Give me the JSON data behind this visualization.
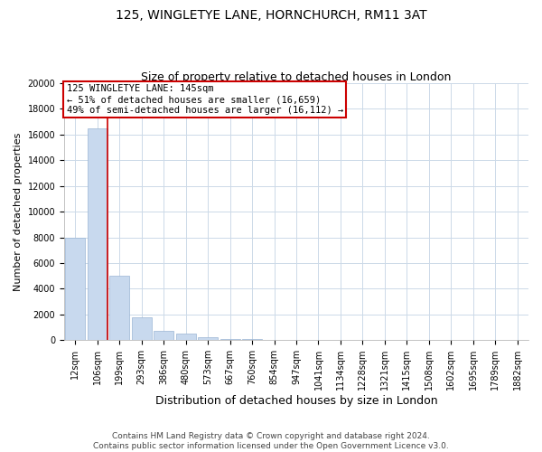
{
  "title": "125, WINGLETYE LANE, HORNCHURCH, RM11 3AT",
  "subtitle": "Size of property relative to detached houses in London",
  "xlabel": "Distribution of detached houses by size in London",
  "ylabel": "Number of detached properties",
  "bar_color": "#c8d9ee",
  "bar_edge_color": "#9ab5d4",
  "categories": [
    "12sqm",
    "106sqm",
    "199sqm",
    "293sqm",
    "386sqm",
    "480sqm",
    "573sqm",
    "667sqm",
    "760sqm",
    "854sqm",
    "947sqm",
    "1041sqm",
    "1134sqm",
    "1228sqm",
    "1321sqm",
    "1415sqm",
    "1508sqm",
    "1602sqm",
    "1695sqm",
    "1789sqm",
    "1882sqm"
  ],
  "values": [
    8000,
    16500,
    5000,
    1800,
    700,
    480,
    200,
    120,
    80,
    50,
    10,
    5,
    3,
    2,
    1,
    1,
    1,
    1,
    1,
    1,
    1
  ],
  "ylim": [
    0,
    20000
  ],
  "yticks": [
    0,
    2000,
    4000,
    6000,
    8000,
    10000,
    12000,
    14000,
    16000,
    18000,
    20000
  ],
  "property_line_x": 1.45,
  "annotation_text": "125 WINGLETYE LANE: 145sqm\n← 51% of detached houses are smaller (16,659)\n49% of semi-detached houses are larger (16,112) →",
  "annotation_box_color": "#ffffff",
  "annotation_box_edge": "#cc0000",
  "red_line_color": "#cc0000",
  "footer_line1": "Contains HM Land Registry data © Crown copyright and database right 2024.",
  "footer_line2": "Contains public sector information licensed under the Open Government Licence v3.0.",
  "bg_color": "#ffffff",
  "grid_color": "#ccd9e8",
  "title_fontsize": 10,
  "subtitle_fontsize": 9,
  "ylabel_fontsize": 8,
  "xlabel_fontsize": 9,
  "tick_fontsize": 7,
  "annot_fontsize": 7.5,
  "footer_fontsize": 6.5
}
